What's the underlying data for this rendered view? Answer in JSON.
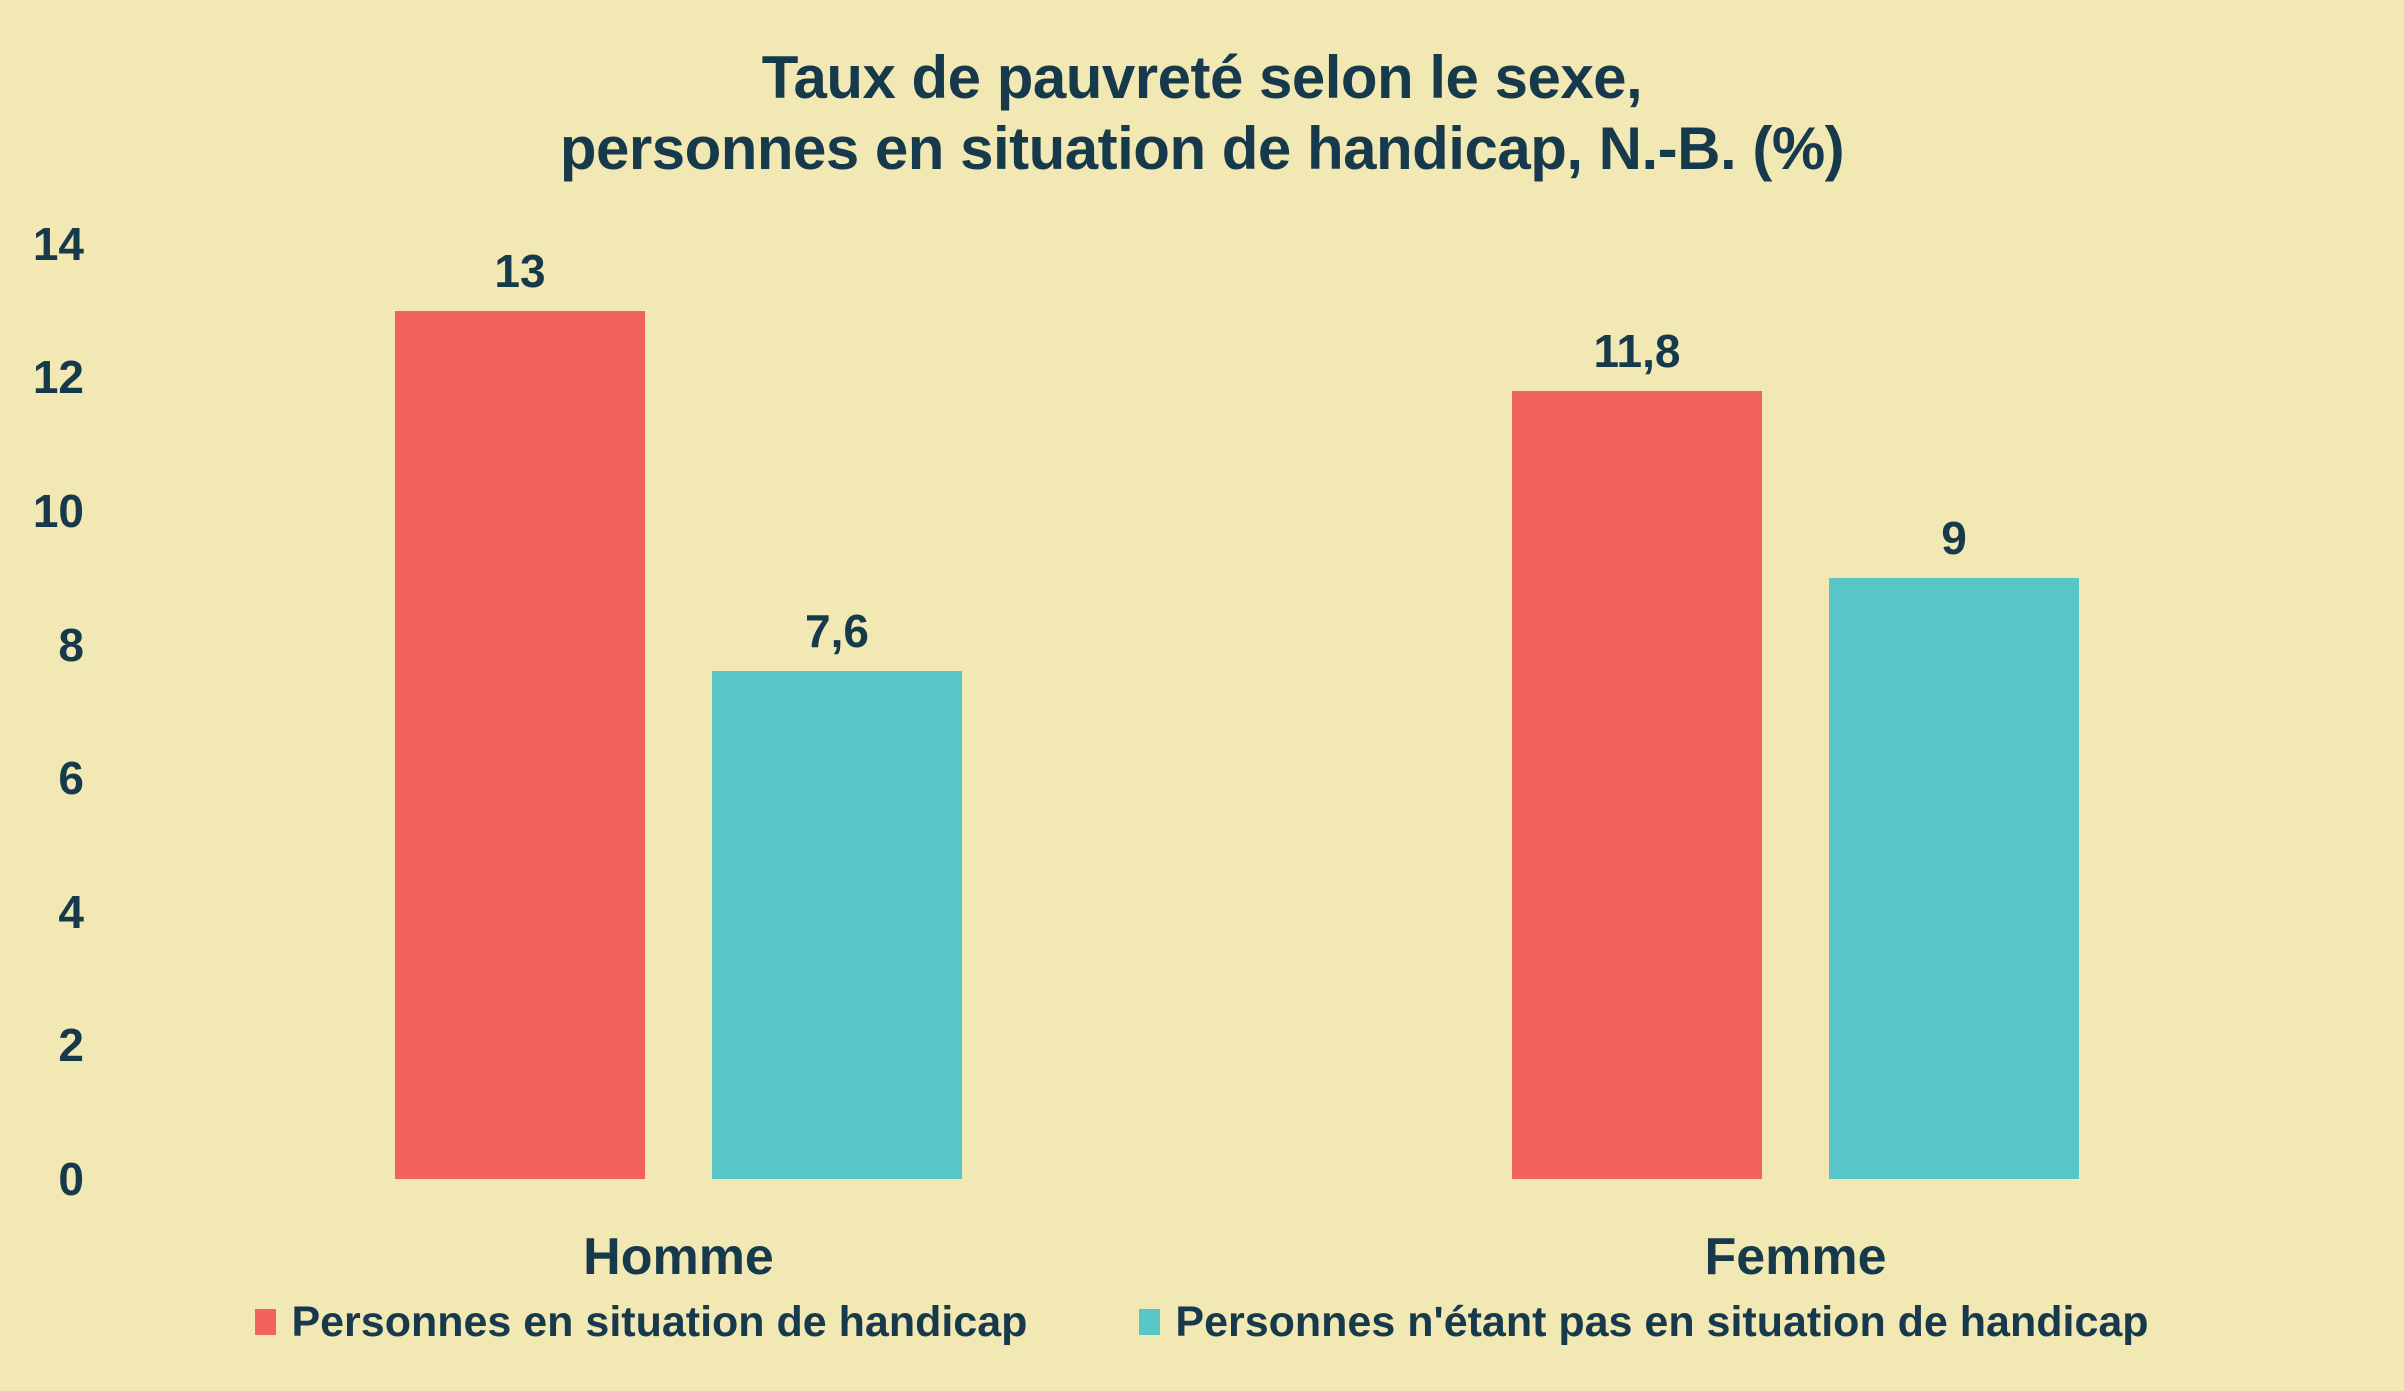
{
  "page": {
    "background": "#F2E8B4",
    "text_color": "#16394B"
  },
  "chart_data": {
    "type": "bar",
    "title_lines": [
      "Taux de pauvreté selon le sexe,",
      "personnes en situation de handicap, N.-B. (%)"
    ],
    "categories": [
      "Homme",
      "Femme"
    ],
    "series": [
      {
        "name": "Personnes en situation de handicap",
        "color": "#F2635D",
        "values": [
          13,
          11.8
        ],
        "value_labels": [
          "13",
          "11,8"
        ]
      },
      {
        "name": "Personnes n'étant pas en situation de handicap",
        "color": "#58C5C6",
        "values": [
          7.6,
          9
        ],
        "value_labels": [
          "7,6",
          "9"
        ]
      }
    ],
    "ylim": [
      0,
      14
    ],
    "yticks": [
      0,
      2,
      4,
      6,
      8,
      10,
      12,
      14
    ],
    "grid": false,
    "axis_lines": false,
    "legend_position": "bottom",
    "xlabel": "",
    "ylabel": ""
  }
}
